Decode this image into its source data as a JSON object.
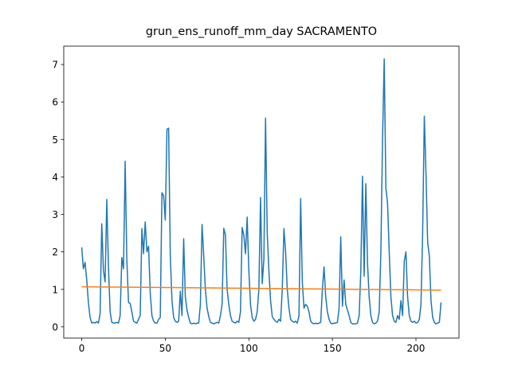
{
  "chart_data": {
    "type": "line",
    "title": "grun_ens_runoff_mm_day SACRAMENTO",
    "xlim": [
      -10.75,
      225.75
    ],
    "ylim": [
      -0.3,
      7.49
    ],
    "xticks": [
      0,
      50,
      100,
      150,
      200
    ],
    "yticks": [
      0,
      1,
      2,
      3,
      4,
      5,
      6,
      7
    ],
    "series": [
      {
        "color": "#1f77b4",
        "x": [
          0,
          1,
          2,
          3,
          4,
          5,
          6,
          7,
          8,
          9,
          10,
          11,
          12,
          13,
          14,
          15,
          16,
          17,
          18,
          19,
          20,
          21,
          22,
          23,
          24,
          25,
          26,
          27,
          28,
          29,
          30,
          31,
          32,
          33,
          34,
          35,
          36,
          37,
          38,
          39,
          40,
          41,
          42,
          43,
          44,
          45,
          46,
          47,
          48,
          49,
          50,
          51,
          52,
          53,
          54,
          55,
          56,
          57,
          58,
          59,
          60,
          61,
          62,
          63,
          64,
          65,
          66,
          67,
          68,
          69,
          70,
          71,
          72,
          73,
          74,
          75,
          76,
          77,
          78,
          79,
          80,
          81,
          82,
          83,
          84,
          85,
          86,
          87,
          88,
          89,
          90,
          91,
          92,
          93,
          94,
          95,
          96,
          97,
          98,
          99,
          100,
          101,
          102,
          103,
          104,
          105,
          106,
          107,
          108,
          109,
          110,
          111,
          112,
          113,
          114,
          115,
          116,
          117,
          118,
          119,
          120,
          121,
          122,
          123,
          124,
          125,
          126,
          127,
          128,
          129,
          130,
          131,
          132,
          133,
          134,
          135,
          136,
          137,
          138,
          139,
          140,
          141,
          142,
          143,
          144,
          145,
          146,
          147,
          148,
          149,
          150,
          151,
          152,
          153,
          154,
          155,
          156,
          157,
          158,
          159,
          160,
          161,
          162,
          163,
          164,
          165,
          166,
          167,
          168,
          169,
          170,
          171,
          172,
          173,
          174,
          175,
          176,
          177,
          178,
          179,
          180,
          181,
          182,
          183,
          184,
          185,
          186,
          187,
          188,
          189,
          190,
          191,
          192,
          193,
          194,
          195,
          196,
          197,
          198,
          199,
          200,
          201,
          202,
          203,
          204,
          205,
          206,
          207,
          208,
          209,
          210,
          211,
          212,
          213,
          214,
          215
        ],
        "values": [
          2.12,
          1.55,
          1.72,
          1.25,
          0.65,
          0.25,
          0.1,
          0.12,
          0.1,
          0.14,
          0.1,
          0.35,
          2.75,
          1.5,
          1.2,
          3.4,
          1.6,
          0.4,
          0.12,
          0.1,
          0.1,
          0.12,
          0.1,
          0.3,
          1.85,
          1.55,
          4.42,
          1.8,
          0.65,
          0.62,
          0.4,
          0.15,
          0.12,
          0.1,
          0.2,
          0.3,
          2.62,
          1.95,
          2.8,
          2.0,
          2.15,
          0.9,
          0.3,
          0.15,
          0.1,
          0.1,
          0.2,
          0.25,
          3.58,
          3.5,
          2.85,
          5.27,
          5.3,
          1.9,
          0.7,
          0.25,
          0.15,
          0.12,
          0.15,
          0.95,
          0.3,
          2.35,
          0.8,
          0.45,
          0.25,
          0.1,
          0.08,
          0.1,
          0.08,
          0.1,
          0.1,
          0.6,
          2.73,
          1.9,
          1.0,
          0.5,
          0.28,
          0.12,
          0.1,
          0.08,
          0.1,
          0.12,
          0.1,
          0.3,
          0.6,
          2.63,
          2.45,
          1.0,
          0.6,
          0.3,
          0.15,
          0.12,
          0.1,
          0.15,
          0.12,
          0.4,
          2.65,
          2.45,
          1.95,
          2.93,
          1.5,
          0.6,
          0.25,
          0.15,
          0.2,
          0.4,
          1.0,
          3.45,
          1.15,
          1.8,
          5.57,
          2.5,
          1.5,
          0.7,
          0.28,
          0.2,
          0.15,
          0.12,
          0.2,
          0.15,
          1.0,
          2.62,
          2.0,
          1.0,
          0.5,
          0.2,
          0.15,
          0.12,
          0.15,
          0.1,
          0.3,
          3.42,
          1.2,
          0.5,
          0.6,
          0.55,
          0.4,
          0.15,
          0.1,
          0.08,
          0.1,
          0.08,
          0.1,
          0.12,
          1.0,
          1.6,
          0.8,
          0.4,
          0.2,
          0.1,
          0.08,
          0.1,
          0.1,
          0.12,
          0.5,
          2.4,
          0.55,
          1.25,
          0.6,
          0.45,
          0.3,
          0.12,
          0.08,
          0.08,
          0.08,
          0.1,
          0.3,
          1.5,
          4.02,
          1.35,
          3.82,
          1.7,
          0.8,
          0.3,
          0.12,
          0.08,
          0.1,
          0.15,
          0.4,
          2.0,
          5.0,
          7.15,
          3.7,
          3.3,
          2.0,
          0.8,
          0.3,
          0.15,
          0.12,
          0.3,
          0.2,
          0.7,
          0.3,
          1.75,
          2.0,
          0.8,
          0.3,
          0.15,
          0.12,
          0.15,
          0.1,
          0.12,
          0.2,
          0.6,
          2.5,
          5.62,
          4.1,
          2.25,
          1.9,
          0.7,
          0.25,
          0.12,
          0.08,
          0.1,
          0.12,
          0.65
        ]
      },
      {
        "color": "#ff7f0e",
        "x": [
          0,
          215
        ],
        "values": [
          1.07,
          0.98
        ]
      }
    ]
  }
}
